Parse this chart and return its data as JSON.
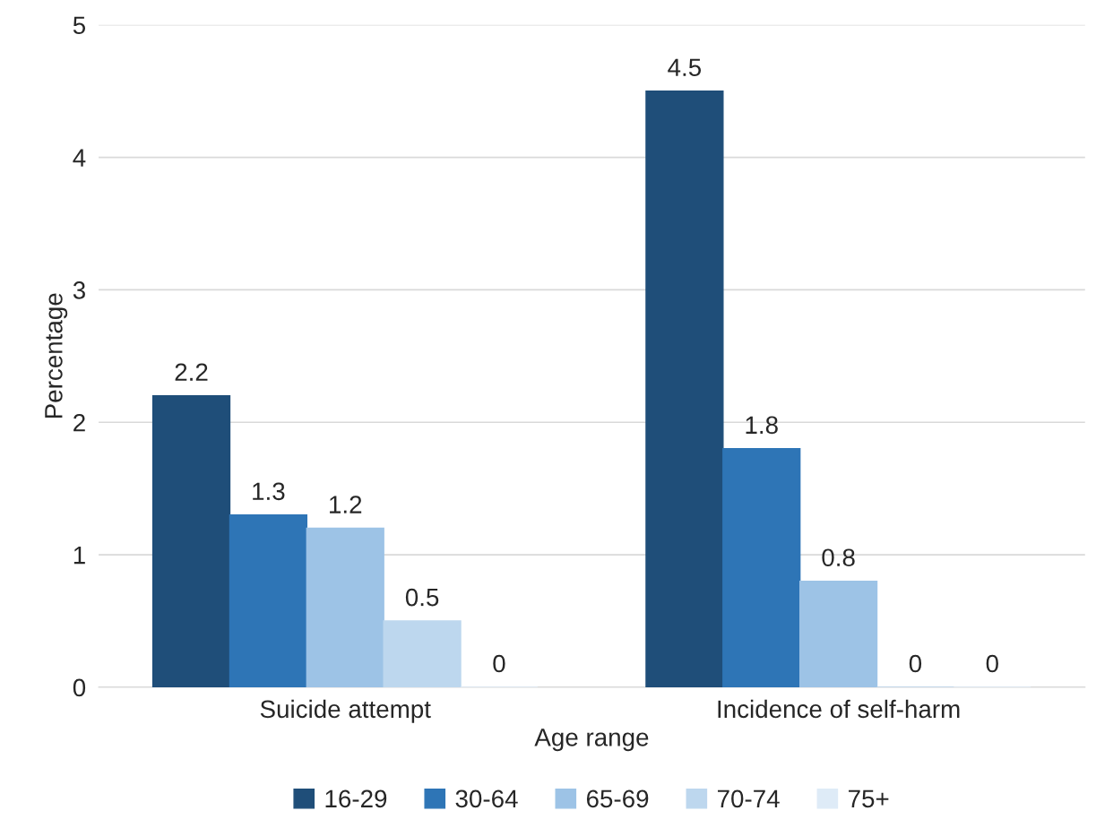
{
  "chart_data": {
    "type": "bar",
    "xlabel": "Age range",
    "ylabel": "Percentage",
    "categories": [
      "Suicide attempt",
      "Incidence of self-harm"
    ],
    "series": [
      {
        "name": "16-29",
        "color": "#1f4e79",
        "values": [
          2.2,
          4.5
        ]
      },
      {
        "name": "30-64",
        "color": "#2e75b6",
        "values": [
          1.3,
          1.8
        ]
      },
      {
        "name": "65-69",
        "color": "#9dc3e6",
        "values": [
          1.2,
          0.8
        ]
      },
      {
        "name": "70-74",
        "color": "#bdd7ee",
        "values": [
          0.5,
          0
        ]
      },
      {
        "name": "75+",
        "color": "#deebf7",
        "values": [
          0,
          0
        ]
      }
    ],
    "ylim": [
      0,
      5
    ],
    "yticks": [
      0,
      1,
      2,
      3,
      4,
      5
    ],
    "grid": "y",
    "legend": "bottom",
    "data_labels": true
  }
}
